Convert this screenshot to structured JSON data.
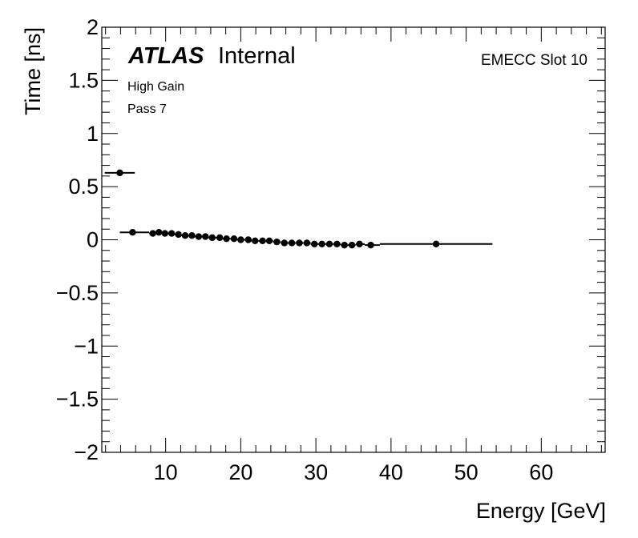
{
  "chart_data": {
    "type": "scatter",
    "title": "",
    "xlabel": "Energy [GeV]",
    "ylabel": "Time [ns]",
    "xlim": [
      1.5,
      68.5
    ],
    "ylim": [
      -2,
      2
    ],
    "x_ticks": [
      10,
      20,
      30,
      40,
      50,
      60
    ],
    "y_ticks": [
      -2,
      -1.5,
      -1,
      -0.5,
      0,
      0.5,
      1,
      1.5,
      2
    ],
    "y_tick_labels": [
      "−2",
      "−1.5",
      "−1",
      "−0.5",
      "0",
      "0.5",
      "1",
      "1.5",
      "2"
    ],
    "grid": false,
    "annotations": {
      "experiment": "ATLAS",
      "status": "Internal",
      "gain": "High Gain",
      "pass": "Pass 7",
      "region": "EMECC Slot 10"
    },
    "series": [
      {
        "points": [
          {
            "x": 3.9,
            "y": 0.63,
            "xerr": [
              1.9,
              5.9
            ],
            "yerr": 0.01
          },
          {
            "x": 5.6,
            "y": 0.07,
            "xerr": [
              3.9,
              7.8
            ],
            "yerr": 0.01
          },
          {
            "x": 8.3,
            "y": 0.06,
            "xerr": [
              7.8,
              8.7
            ],
            "yerr": 0.03
          },
          {
            "x": 9.1,
            "y": 0.07,
            "xerr": [
              8.7,
              9.5
            ],
            "yerr": 0.03
          },
          {
            "x": 9.9,
            "y": 0.06,
            "xerr": [
              9.5,
              10.3
            ],
            "yerr": 0.025
          },
          {
            "x": 10.8,
            "y": 0.06,
            "xerr": [
              10.3,
              11.2
            ],
            "yerr": 0.02
          },
          {
            "x": 11.7,
            "y": 0.05,
            "xerr": [
              11.2,
              12.1
            ],
            "yerr": 0.02
          },
          {
            "x": 12.6,
            "y": 0.04,
            "xerr": [
              12.1,
              13.0
            ],
            "yerr": 0.02
          },
          {
            "x": 13.5,
            "y": 0.04,
            "xerr": [
              13.0,
              13.9
            ],
            "yerr": 0.02
          },
          {
            "x": 14.4,
            "y": 0.03,
            "xerr": [
              13.9,
              14.8
            ],
            "yerr": 0.02
          },
          {
            "x": 15.3,
            "y": 0.03,
            "xerr": [
              14.8,
              15.7
            ],
            "yerr": 0.02
          },
          {
            "x": 16.2,
            "y": 0.02,
            "xerr": [
              15.7,
              16.7
            ],
            "yerr": 0.02
          },
          {
            "x": 17.2,
            "y": 0.02,
            "xerr": [
              16.7,
              17.6
            ],
            "yerr": 0.02
          },
          {
            "x": 18.1,
            "y": 0.01,
            "xerr": [
              17.6,
              18.6
            ],
            "yerr": 0.02
          },
          {
            "x": 19.1,
            "y": 0.01,
            "xerr": [
              18.6,
              19.5
            ],
            "yerr": 0.02
          },
          {
            "x": 20.0,
            "y": 0.0,
            "xerr": [
              19.5,
              20.5
            ],
            "yerr": 0.02
          },
          {
            "x": 21.0,
            "y": 0.0,
            "xerr": [
              20.5,
              21.4
            ],
            "yerr": 0.02
          },
          {
            "x": 21.9,
            "y": -0.01,
            "xerr": [
              21.4,
              22.4
            ],
            "yerr": 0.02
          },
          {
            "x": 22.9,
            "y": -0.01,
            "xerr": [
              22.4,
              23.3
            ],
            "yerr": 0.02
          },
          {
            "x": 23.8,
            "y": -0.01,
            "xerr": [
              23.3,
              24.3
            ],
            "yerr": 0.02
          },
          {
            "x": 24.8,
            "y": -0.02,
            "xerr": [
              24.3,
              25.3
            ],
            "yerr": 0.02
          },
          {
            "x": 25.8,
            "y": -0.03,
            "xerr": [
              25.3,
              26.3
            ],
            "yerr": 0.02
          },
          {
            "x": 26.8,
            "y": -0.03,
            "xerr": [
              26.3,
              27.3
            ],
            "yerr": 0.02
          },
          {
            "x": 27.8,
            "y": -0.03,
            "xerr": [
              27.3,
              28.3
            ],
            "yerr": 0.02
          },
          {
            "x": 28.8,
            "y": -0.03,
            "xerr": [
              28.3,
              29.3
            ],
            "yerr": 0.02
          },
          {
            "x": 29.8,
            "y": -0.04,
            "xerr": [
              29.3,
              30.3
            ],
            "yerr": 0.02
          },
          {
            "x": 30.8,
            "y": -0.04,
            "xerr": [
              30.3,
              31.3
            ],
            "yerr": 0.02
          },
          {
            "x": 31.8,
            "y": -0.04,
            "xerr": [
              31.3,
              32.3
            ],
            "yerr": 0.02
          },
          {
            "x": 32.8,
            "y": -0.04,
            "xerr": [
              32.3,
              33.3
            ],
            "yerr": 0.02
          },
          {
            "x": 33.8,
            "y": -0.05,
            "xerr": [
              33.3,
              34.3
            ],
            "yerr": 0.02
          },
          {
            "x": 34.8,
            "y": -0.05,
            "xerr": [
              34.3,
              35.3
            ],
            "yerr": 0.02
          },
          {
            "x": 35.8,
            "y": -0.04,
            "xerr": [
              35.3,
              36.5
            ],
            "yerr": 0.02
          },
          {
            "x": 37.3,
            "y": -0.05,
            "xerr": [
              36.5,
              38.5
            ],
            "yerr": 0.01
          },
          {
            "x": 46.0,
            "y": -0.04,
            "xerr": [
              38.5,
              53.5
            ],
            "yerr": 0.01
          }
        ]
      }
    ]
  }
}
